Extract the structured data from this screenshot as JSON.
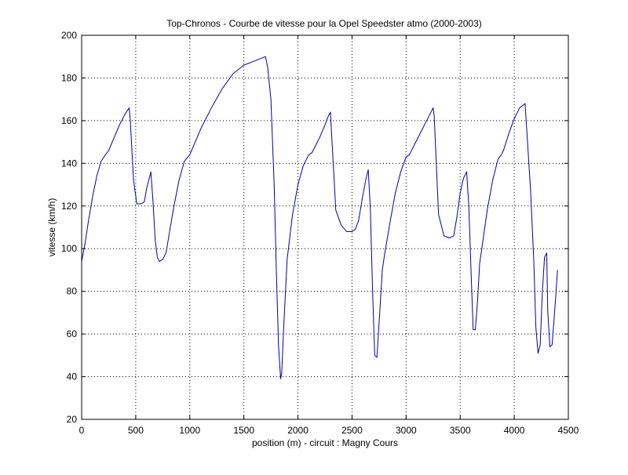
{
  "chart_data": {
    "type": "line",
    "title": "Top-Chronos - Courbe de vitesse pour la Opel Speedster atmo (2000-2003)",
    "xlabel": "position (m) - circuit : Magny Cours",
    "ylabel": "vitesse (km/h)",
    "xlim": [
      0,
      4500
    ],
    "ylim": [
      20,
      200
    ],
    "xticks": [
      0,
      500,
      1000,
      1500,
      2000,
      2500,
      3000,
      3500,
      4000,
      4500
    ],
    "yticks": [
      20,
      40,
      60,
      80,
      100,
      120,
      140,
      160,
      180,
      200
    ],
    "grid": true,
    "line_color": "#0000aa",
    "series": [
      {
        "x": [
          0,
          30,
          60,
          100,
          140,
          180,
          220,
          250,
          300,
          350,
          400,
          440,
          450,
          480,
          510,
          550,
          580,
          600,
          640,
          660,
          680,
          700,
          720,
          750,
          780,
          800,
          850,
          900,
          950,
          1000,
          1050,
          1100,
          1200,
          1300,
          1400,
          1500,
          1600,
          1650,
          1700,
          1720,
          1750,
          1780,
          1800,
          1820,
          1840,
          1850,
          1870,
          1900,
          1950,
          2000,
          2050,
          2100,
          2130,
          2200,
          2250,
          2280,
          2300,
          2350,
          2400,
          2450,
          2500,
          2530,
          2560,
          2600,
          2630,
          2650,
          2670,
          2690,
          2710,
          2730,
          2750,
          2780,
          2800,
          2850,
          2900,
          2950,
          3000,
          3030,
          3100,
          3150,
          3200,
          3250,
          3260,
          3300,
          3350,
          3400,
          3440,
          3470,
          3500,
          3530,
          3560,
          3580,
          3600,
          3620,
          3640,
          3660,
          3680,
          3700,
          3750,
          3800,
          3850,
          3880,
          3900,
          3950,
          4000,
          4050,
          4100,
          4110,
          4150,
          4180,
          4200,
          4220,
          4240,
          4260,
          4280,
          4300,
          4310,
          4330,
          4350,
          4380,
          4400
        ],
        "y": [
          94,
          102,
          112,
          124,
          134,
          141,
          144,
          146,
          152,
          158,
          163,
          166,
          160,
          132,
          121,
          121,
          122,
          128,
          136,
          122,
          104,
          96,
          94,
          95,
          98,
          104,
          119,
          132,
          141,
          144,
          150,
          156,
          166,
          175,
          182,
          186,
          188,
          189,
          190,
          185,
          170,
          130,
          90,
          55,
          39,
          42,
          65,
          95,
          116,
          130,
          139,
          144,
          145,
          152,
          158,
          162,
          164,
          118,
          111,
          108,
          108,
          109,
          113,
          125,
          133,
          137,
          118,
          80,
          50,
          49,
          65,
          90,
          97,
          112,
          126,
          136,
          143,
          144,
          151,
          156,
          161,
          166,
          162,
          116,
          106,
          105,
          106,
          115,
          126,
          133,
          136,
          120,
          90,
          62,
          62,
          75,
          93,
          100,
          118,
          132,
          142,
          144,
          146,
          154,
          161,
          166,
          168,
          160,
          128,
          95,
          63,
          51,
          55,
          80,
          96,
          98,
          70,
          54,
          55,
          75,
          90
        ]
      }
    ]
  }
}
